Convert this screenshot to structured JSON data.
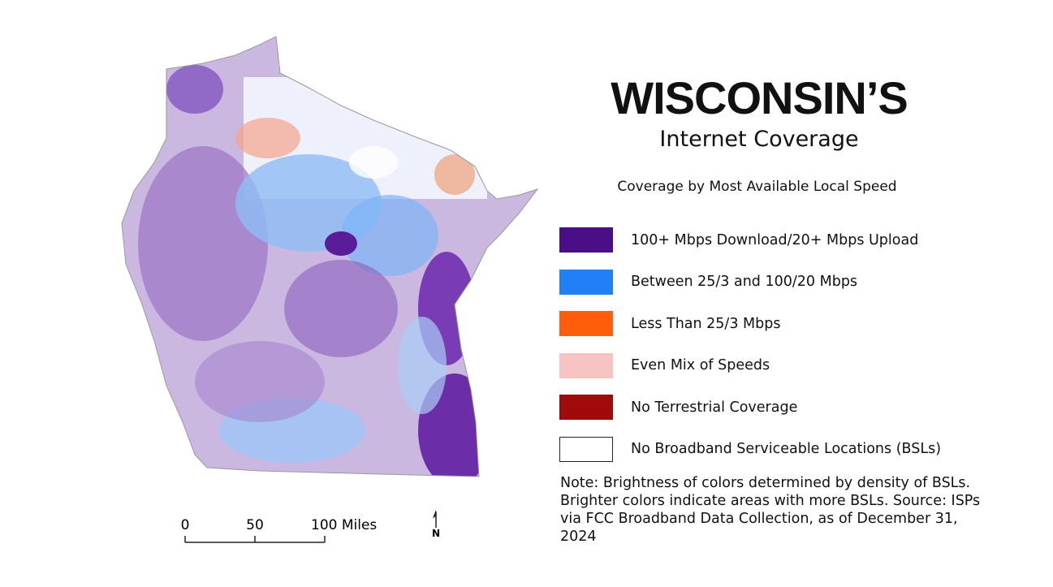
{
  "header": {
    "title": "WISCONSIN’S",
    "subtitle": "Internet Coverage"
  },
  "legend": {
    "heading": "Coverage by Most Available Local Speed",
    "items": [
      {
        "label": "100+ Mbps Download/20+ Mbps Upload",
        "color": "#4a0f86"
      },
      {
        "label": "Between 25/3 and 100/20 Mbps",
        "color": "#2280f6"
      },
      {
        "label": "Less Than 25/3 Mbps",
        "color": "#ff5c0c"
      },
      {
        "label": "Even Mix of Speeds",
        "color": "#f7c3c3"
      },
      {
        "label": "No Terrestrial Coverage",
        "color": "#a00a0a"
      },
      {
        "label": "No Broadband Serviceable Locations (BSLs)",
        "color": "#ffffff"
      }
    ]
  },
  "note": "Note: Brightness of colors determined by density of BSLs. Brighter colors indicate areas with more BSLs. Source: ISPs via FCC Broadband Data Collection, as of December 31, 2024",
  "scale_bar": {
    "labels": [
      "0",
      "50",
      "100 Miles"
    ]
  },
  "north_arrow": {
    "label": "N"
  }
}
